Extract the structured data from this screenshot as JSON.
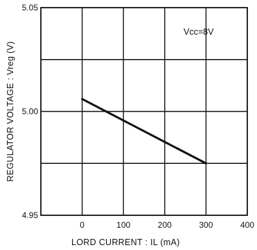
{
  "chart_data": {
    "type": "line",
    "title": "",
    "xlabel": "LORD   CURRENT : IL  (mA)",
    "ylabel": "REGULATOR  VOLTAGE : Vreg  (V)",
    "xlim": [
      -100,
      400
    ],
    "ylim": [
      4.95,
      5.05
    ],
    "x_ticks": [
      0,
      100,
      200,
      300,
      400
    ],
    "y_ticks": [
      4.95,
      5.0,
      5.05
    ],
    "x_tick_labels": [
      "0",
      "100",
      "200",
      "300",
      "400"
    ],
    "y_tick_labels": [
      "4.95",
      "5.00",
      "5.05"
    ],
    "grid": true,
    "y_gridlines": [
      4.975,
      5.0,
      5.025
    ],
    "x_gridlines": [
      0,
      100,
      200,
      300
    ],
    "annotation": "Vcc=8V",
    "series": [
      {
        "x": [
          0,
          300
        ],
        "y": [
          5.006,
          4.975
        ]
      }
    ]
  }
}
